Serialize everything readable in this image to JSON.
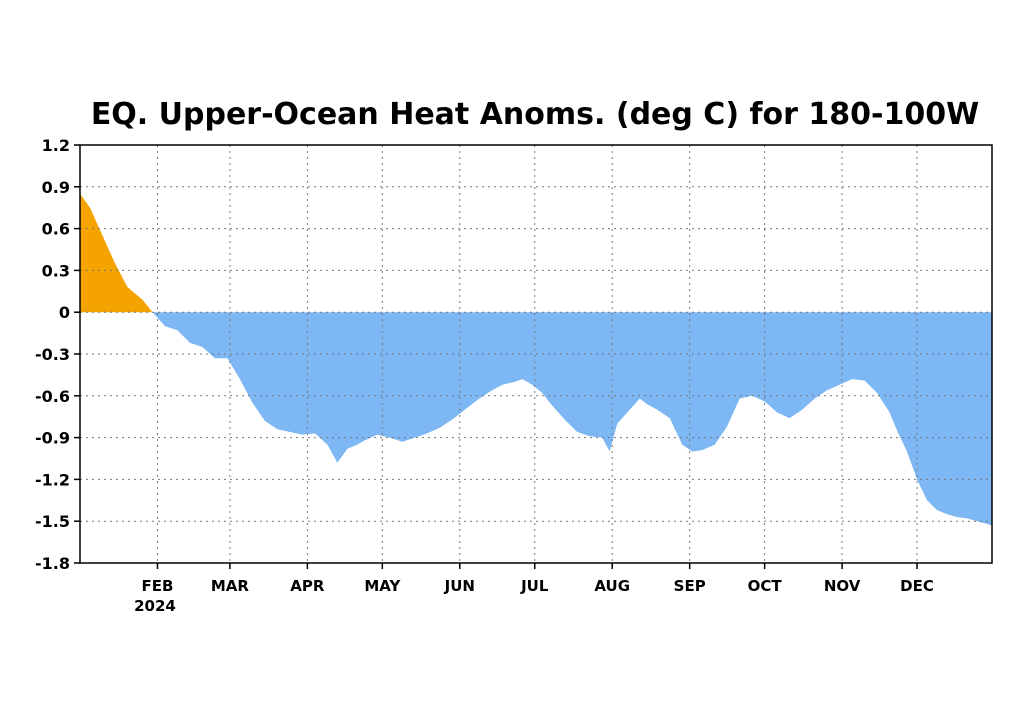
{
  "chart_data": {
    "type": "area",
    "title": "EQ. Upper-Ocean Heat Anoms. (deg C) for 180-100W",
    "xlabel": "",
    "ylabel": "",
    "year_label": "2024",
    "ylim": [
      -1.8,
      1.2
    ],
    "yticks": [
      1.2,
      0.9,
      0.6,
      0.3,
      0,
      -0.3,
      -0.6,
      -0.9,
      -1.2,
      -1.5,
      -1.8
    ],
    "ytick_labels": [
      "1.2",
      "0.9",
      "0.6",
      "0.3",
      "0",
      "-0.3",
      "-0.6",
      "-0.9",
      "-1.2",
      "-1.5",
      "-1.8"
    ],
    "xlim": [
      1,
      366
    ],
    "month_ticks": [
      {
        "day": 32,
        "label": "FEB"
      },
      {
        "day": 61,
        "label": "MAR"
      },
      {
        "day": 92,
        "label": "APR"
      },
      {
        "day": 122,
        "label": "MAY"
      },
      {
        "day": 153,
        "label": "JUN"
      },
      {
        "day": 183,
        "label": "JUL"
      },
      {
        "day": 214,
        "label": "AUG"
      },
      {
        "day": 245,
        "label": "SEP"
      },
      {
        "day": 275,
        "label": "OCT"
      },
      {
        "day": 306,
        "label": "NOV"
      },
      {
        "day": 336,
        "label": "DEC"
      }
    ],
    "grid": true,
    "positive_color": "#f5a300",
    "negative_color": "#7db8f5",
    "x": [
      1,
      5,
      10,
      15,
      20,
      26,
      30,
      35,
      40,
      45,
      50,
      55,
      60,
      65,
      70,
      75,
      80,
      85,
      90,
      95,
      100,
      104,
      108,
      112,
      115,
      120,
      125,
      130,
      135,
      140,
      145,
      150,
      155,
      160,
      165,
      170,
      175,
      178,
      182,
      186,
      190,
      195,
      200,
      205,
      210,
      213,
      216,
      220,
      225,
      228,
      232,
      237,
      242,
      246,
      250,
      255,
      260,
      265,
      270,
      275,
      280,
      285,
      290,
      295,
      300,
      305,
      310,
      315,
      320,
      325,
      328,
      332,
      336,
      340,
      344,
      348,
      352,
      356,
      360,
      364,
      366
    ],
    "values": [
      0.85,
      0.75,
      0.55,
      0.35,
      0.18,
      0.09,
      0.0,
      -0.1,
      -0.13,
      -0.22,
      -0.25,
      -0.33,
      -0.33,
      -0.48,
      -0.65,
      -0.78,
      -0.84,
      -0.86,
      -0.88,
      -0.87,
      -0.95,
      -1.08,
      -0.98,
      -0.95,
      -0.92,
      -0.88,
      -0.9,
      -0.93,
      -0.9,
      -0.87,
      -0.83,
      -0.77,
      -0.7,
      -0.63,
      -0.57,
      -0.52,
      -0.5,
      -0.48,
      -0.52,
      -0.58,
      -0.67,
      -0.77,
      -0.86,
      -0.89,
      -0.9,
      -1.0,
      -0.8,
      -0.72,
      -0.62,
      -0.66,
      -0.7,
      -0.76,
      -0.95,
      -1.0,
      -0.99,
      -0.95,
      -0.82,
      -0.62,
      -0.6,
      -0.64,
      -0.72,
      -0.76,
      -0.7,
      -0.62,
      -0.56,
      -0.52,
      -0.48,
      -0.49,
      -0.58,
      -0.72,
      -0.85,
      -1.0,
      -1.2,
      -1.35,
      -1.42,
      -1.45,
      -1.47,
      -1.48,
      -1.5,
      -1.52,
      -1.53
    ]
  }
}
